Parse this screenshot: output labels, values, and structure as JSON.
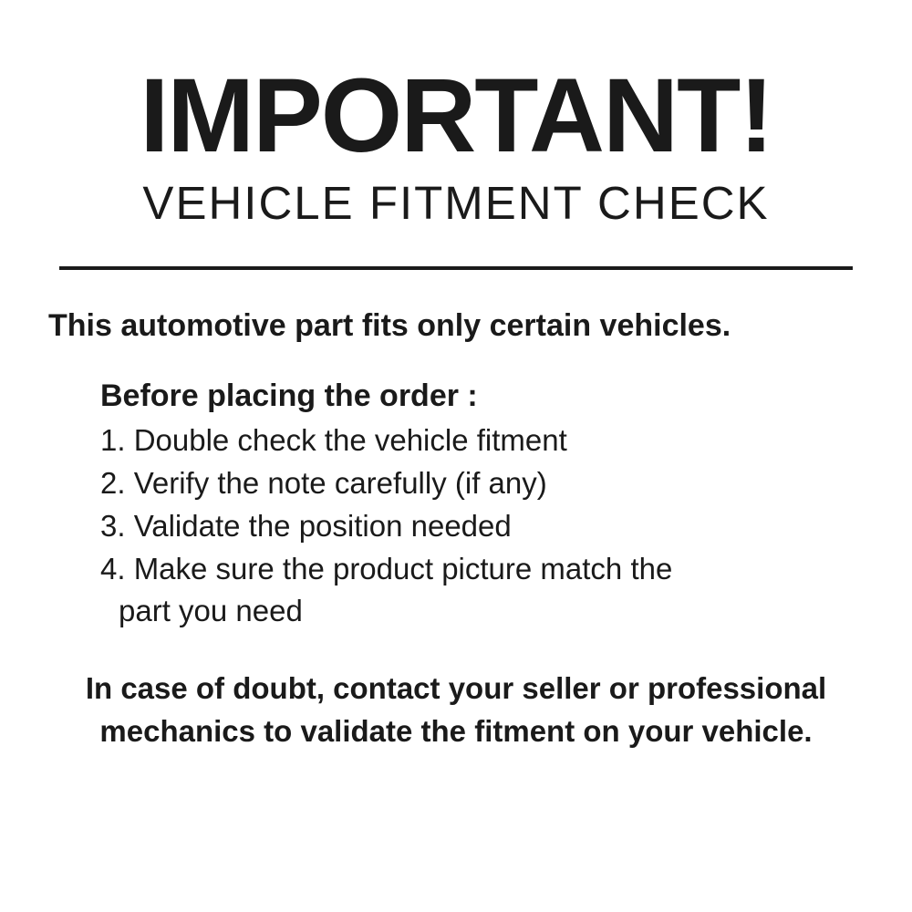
{
  "header": {
    "title": "IMPORTANT!",
    "subtitle": "VEHICLE FITMENT CHECK"
  },
  "intro": "This automotive part fits only certain vehicles.",
  "list": {
    "heading": "Before placing the order :",
    "items": [
      "1. Double check the vehicle fitment",
      "2. Verify the note carefully (if any)",
      "3. Validate the position needed",
      "4. Make sure the product picture match the",
      " part you need"
    ]
  },
  "footer": "In case of doubt, contact your seller or professional mechanics to validate the fitment on your vehicle.",
  "styling": {
    "background_color": "#ffffff",
    "text_color": "#1a1a1a",
    "title_fontsize": 115,
    "title_fontweight": 700,
    "subtitle_fontsize": 51,
    "subtitle_fontweight": 500,
    "intro_fontsize": 34,
    "intro_fontweight": 700,
    "list_heading_fontsize": 34,
    "list_heading_fontweight": 800,
    "list_item_fontsize": 33,
    "list_item_fontweight": 400,
    "footer_fontsize": 33,
    "footer_fontweight": 700,
    "divider_width": 870,
    "divider_thickness": 4,
    "divider_color": "#1a1a1a",
    "font_family": "Arial, Helvetica, sans-serif"
  }
}
